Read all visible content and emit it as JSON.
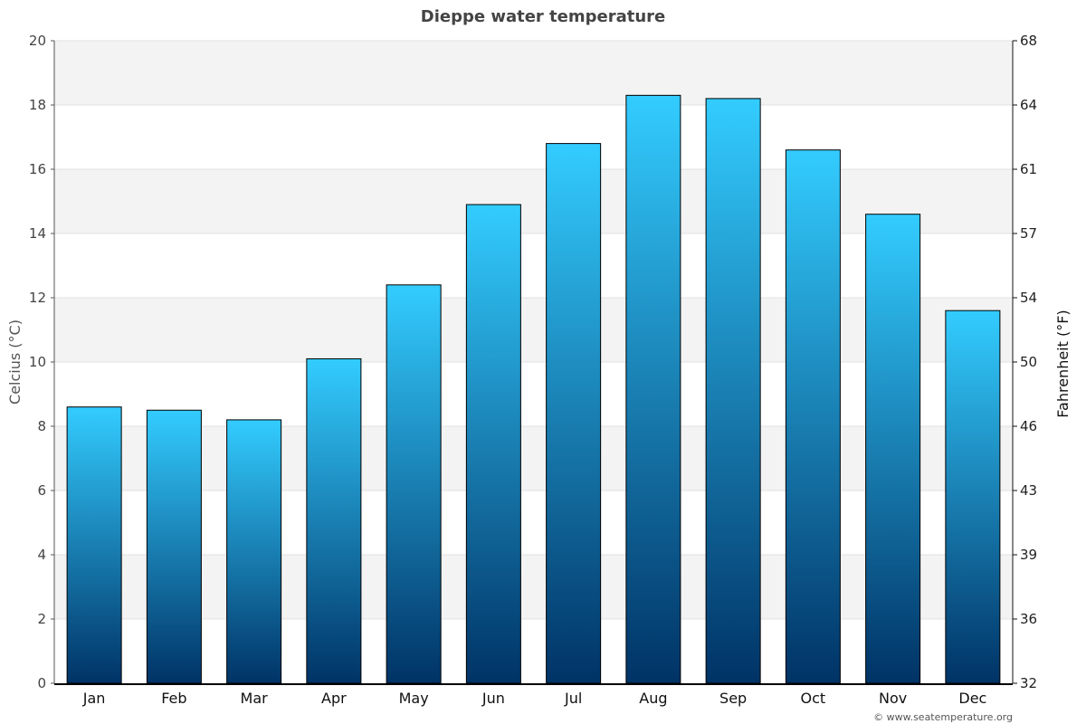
{
  "chart_data": {
    "type": "bar",
    "title": "Dieppe water temperature",
    "categories": [
      "Jan",
      "Feb",
      "Mar",
      "Apr",
      "May",
      "Jun",
      "Jul",
      "Aug",
      "Sep",
      "Oct",
      "Nov",
      "Dec"
    ],
    "series": [
      {
        "values": [
          8.6,
          8.5,
          8.2,
          10.1,
          12.4,
          14.9,
          16.8,
          18.3,
          18.2,
          16.6,
          14.6,
          11.6
        ]
      }
    ],
    "ylabel": "Celcius (°C)",
    "ylabel_right": "Fahrenheit (°F)",
    "ylim": [
      0,
      20
    ],
    "yticks": [
      "0",
      "2",
      "4",
      "6",
      "8",
      "10",
      "12",
      "14",
      "16",
      "18",
      "20"
    ],
    "yticks_right": [
      "32",
      "36",
      "39",
      "43",
      "46",
      "50",
      "54",
      "57",
      "61",
      "64",
      "68"
    ],
    "grid": true,
    "legend": "none",
    "colors": {
      "bar_top": "#33ccff",
      "bar_bottom": "#003366",
      "band_alt": "#f3f3f3",
      "gridline": "#e0e0e0"
    }
  },
  "credit": "© www.seatemperature.org"
}
